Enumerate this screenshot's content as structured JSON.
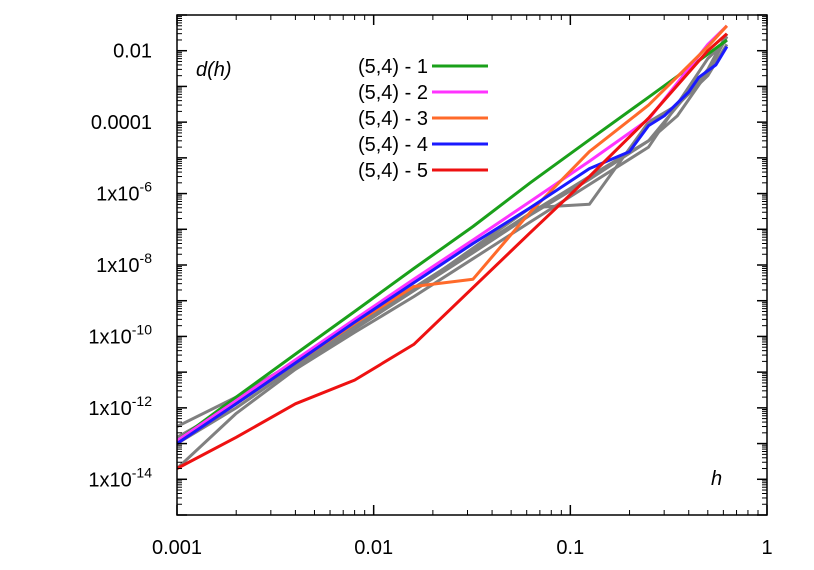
{
  "chart_data": {
    "type": "line",
    "title": "",
    "xlabel": "h",
    "ylabel": "d(h)",
    "x_scale": "log",
    "y_scale": "log",
    "xlim": [
      0.001,
      1
    ],
    "ylim": [
      1e-15,
      0.1
    ],
    "grid": false,
    "legend_position": "top-left",
    "x_ticks": [
      {
        "value": 0.001,
        "label": "0.001"
      },
      {
        "value": 0.01,
        "label": "0.01"
      },
      {
        "value": 0.1,
        "label": "0.1"
      },
      {
        "value": 1,
        "label": "1"
      }
    ],
    "y_ticks": [
      {
        "value": 1e-14,
        "base": "1x10",
        "exp": "-14"
      },
      {
        "value": 1e-12,
        "base": "1x10",
        "exp": "-12"
      },
      {
        "value": 1e-10,
        "base": "1x10",
        "exp": "-10"
      },
      {
        "value": 1e-08,
        "base": "1x10",
        "exp": "-8"
      },
      {
        "value": 1e-06,
        "base": "1x10",
        "exp": "-6"
      },
      {
        "value": 0.0001,
        "base": "0.0001",
        "exp": ""
      },
      {
        "value": 0.01,
        "base": "0.01",
        "exp": ""
      }
    ],
    "background_series_color": "#808080",
    "background_series": [
      {
        "x": [
          0.001,
          0.002,
          0.004,
          0.008,
          0.016,
          0.0625,
          0.125,
          0.25,
          0.35,
          0.5,
          0.625
        ],
        "y": [
          3e-13,
          2e-12,
          2e-11,
          2e-10,
          2e-09,
          4e-07,
          5e-07,
          0.0001,
          0.0003,
          0.002,
          0.015
        ]
      },
      {
        "x": [
          0.001,
          0.002,
          0.004,
          0.008,
          0.016,
          0.032,
          0.0625,
          0.125,
          0.25,
          0.5,
          0.625
        ],
        "y": [
          2e-14,
          7e-13,
          1.2e-11,
          1.3e-10,
          1.3e-09,
          1.5e-08,
          1.6e-07,
          1.8e-06,
          2e-05,
          0.006,
          0.02
        ]
      },
      {
        "x": [
          0.001,
          0.002,
          0.004,
          0.008,
          0.016,
          0.032,
          0.0625,
          0.125,
          0.25,
          0.35,
          0.5,
          0.625
        ],
        "y": [
          1.5e-13,
          1.3e-12,
          1.7e-11,
          2e-10,
          2.3e-09,
          2.6e-08,
          2.8e-07,
          3e-06,
          3e-05,
          0.00015,
          0.0025,
          0.025
        ]
      },
      {
        "x": [
          0.001,
          0.002,
          0.004,
          0.008,
          0.016,
          0.032,
          0.0625,
          0.125,
          0.25,
          0.5,
          0.625
        ],
        "y": [
          1e-13,
          1e-12,
          1.4e-11,
          1.6e-10,
          1.9e-09,
          2.2e-08,
          2.5e-07,
          2.5e-06,
          3e-05,
          0.003,
          0.03
        ]
      }
    ],
    "series": [
      {
        "name": "(5,4) - 1",
        "color": "#1aa01a",
        "x": [
          0.001,
          0.002,
          0.004,
          0.008,
          0.016,
          0.032,
          0.0625,
          0.125,
          0.25,
          0.5,
          0.625
        ],
        "y": [
          1.2e-13,
          2e-12,
          3.2e-11,
          5e-10,
          8e-09,
          1.2e-07,
          2e-06,
          3.2e-05,
          0.0005,
          0.008,
          0.02
        ]
      },
      {
        "name": "(5,4) - 2",
        "color": "#ff33ff",
        "x": [
          0.001,
          0.002,
          0.004,
          0.008,
          0.016,
          0.032,
          0.0625,
          0.125,
          0.25,
          0.5,
          0.625
        ],
        "y": [
          1.2e-13,
          1.6e-12,
          2.2e-11,
          3e-10,
          4e-09,
          5e-08,
          6e-07,
          8e-06,
          0.00012,
          0.015,
          0.05
        ]
      },
      {
        "name": "(5,4) - 3",
        "color": "#ff6a2a",
        "x": [
          0.001,
          0.002,
          0.004,
          0.008,
          0.016,
          0.032,
          0.0625,
          0.125,
          0.25,
          0.5,
          0.625
        ],
        "y": [
          1e-13,
          1.3e-12,
          1.8e-11,
          2.3e-10,
          2.5e-09,
          4e-09,
          3e-07,
          1.5e-05,
          0.0003,
          0.013,
          0.05
        ]
      },
      {
        "name": "(5,4) - 4",
        "color": "#1a1aff",
        "x": [
          0.001,
          0.002,
          0.004,
          0.008,
          0.016,
          0.032,
          0.0625,
          0.125,
          0.2,
          0.25,
          0.3,
          0.4,
          0.45,
          0.55,
          0.625
        ],
        "y": [
          1e-13,
          1.3e-12,
          1.8e-11,
          2.5e-10,
          3.2e-09,
          4e-08,
          4e-07,
          5e-06,
          1.5e-05,
          8e-05,
          0.00015,
          0.0007,
          0.0018,
          0.004,
          0.013
        ]
      },
      {
        "name": "(5,4) - 5",
        "color": "#ee1111",
        "x": [
          0.001,
          0.002,
          0.004,
          0.008,
          0.016,
          0.0625,
          0.125,
          0.25,
          0.5,
          0.625
        ],
        "y": [
          2e-14,
          1.5e-13,
          1.3e-12,
          6e-12,
          6e-11,
          8e-08,
          3e-06,
          0.00013,
          0.01,
          0.03
        ]
      }
    ]
  }
}
